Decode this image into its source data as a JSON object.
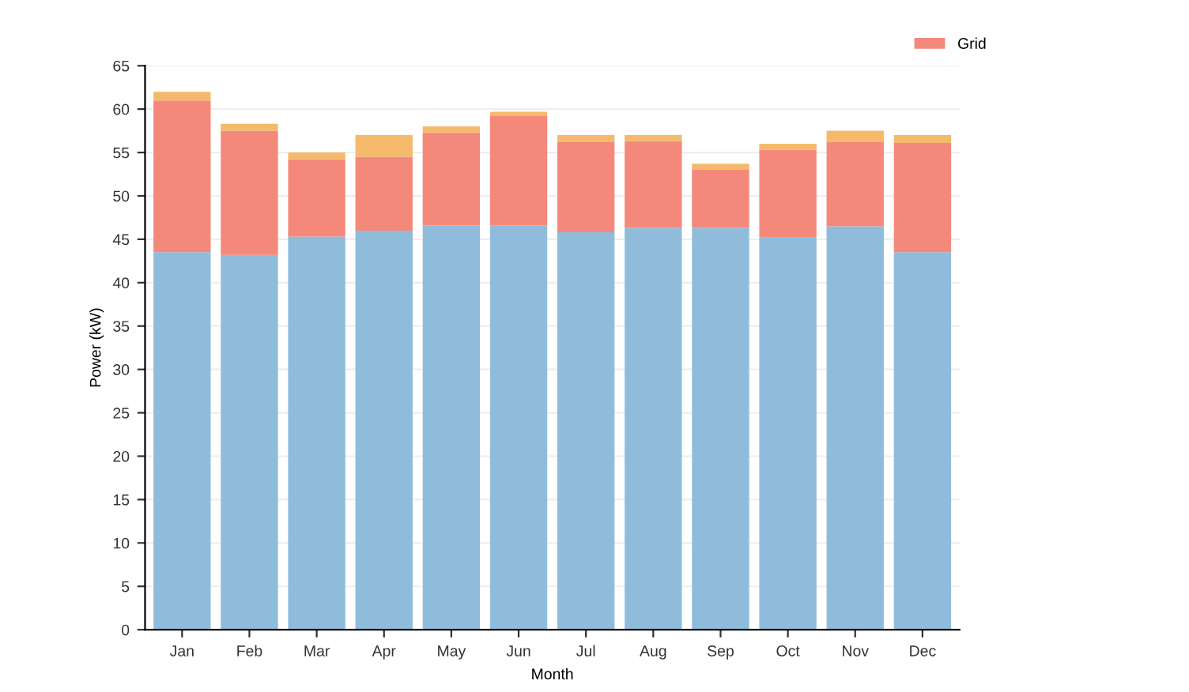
{
  "chart_data": {
    "type": "bar",
    "xlabel": "Month",
    "ylabel": "Power (kW)",
    "categories": [
      "Jan",
      "Feb",
      "Mar",
      "Apr",
      "May",
      "Jun",
      "Jul",
      "Aug",
      "Sep",
      "Oct",
      "Nov",
      "Dec"
    ],
    "stacked": true,
    "series": [
      {
        "color": "#8fbcdb",
        "values": [
          43.5,
          43.2,
          45.3,
          46,
          46.6,
          46.6,
          45.8,
          46.3,
          46.3,
          45.2,
          46.5,
          43.5
        ]
      },
      {
        "name": "Grid",
        "color": "#f4897b",
        "values": [
          17.5,
          14.3,
          8.9,
          8.5,
          10.7,
          12.6,
          10.4,
          10,
          6.7,
          10.1,
          9.7,
          12.6
        ]
      },
      {
        "color": "#f5b96b",
        "values": [
          1.0,
          0.8,
          0.8,
          2.5,
          0.7,
          0.5,
          0.8,
          0.7,
          0.7,
          0.7,
          1.3,
          0.9
        ]
      }
    ],
    "ylim": [
      0,
      65
    ],
    "yticks": [
      0,
      5,
      10,
      15,
      20,
      25,
      30,
      35,
      40,
      45,
      50,
      55,
      60,
      65
    ],
    "grid": "y",
    "legend": "top right"
  }
}
